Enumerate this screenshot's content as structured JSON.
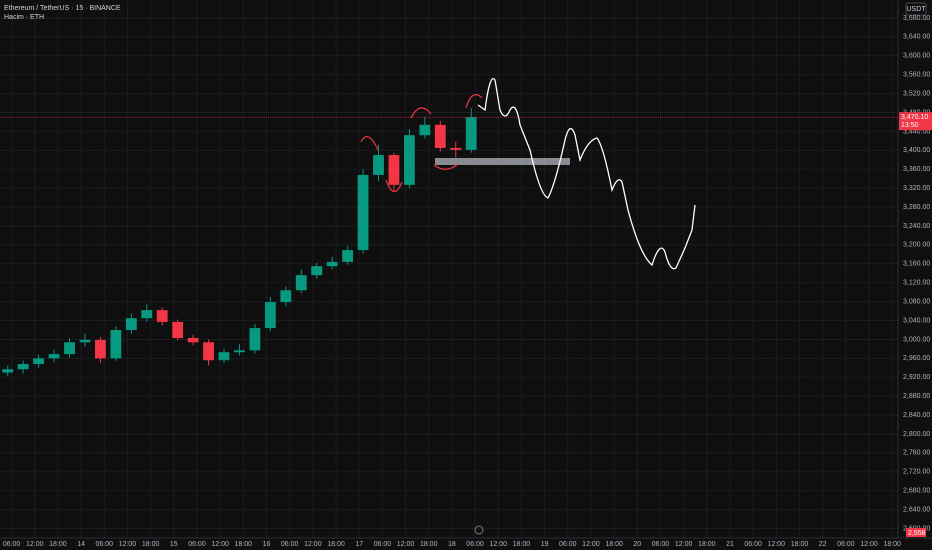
{
  "header": {
    "symbol": "Ethereum / TetherUS · 15 · BINANCE",
    "volume_legend": "Hacim · ETH",
    "currency": "USDT",
    "price_label": "3,470.10",
    "countdown": "13:50",
    "volume_label": "2,558"
  },
  "chart_data": {
    "type": "candlestick",
    "x": [
      -1,
      3,
      7,
      11,
      15,
      19,
      23,
      27,
      31,
      35,
      39,
      43,
      47,
      51,
      55,
      59,
      63,
      67,
      71,
      75,
      79,
      83,
      87,
      91,
      95,
      99,
      103,
      107,
      111,
      115,
      119
    ],
    "open": [
      2930,
      2937,
      2948,
      2960,
      2969,
      2994,
      2999,
      2960,
      3020,
      3045,
      3062,
      3037,
      3003,
      2994,
      2956,
      2973,
      2977,
      3024,
      3079,
      3104,
      3136,
      3155,
      3164,
      3189,
      3348,
      3390,
      3327,
      3432,
      3454,
      3405,
      3401
    ],
    "high": [
      2945,
      2955,
      2968,
      2978,
      3002,
      3012,
      3005,
      3028,
      3055,
      3075,
      3068,
      3042,
      3010,
      3000,
      2980,
      2990,
      3032,
      3090,
      3112,
      3148,
      3162,
      3175,
      3198,
      3360,
      3412,
      3395,
      3445,
      3470,
      3462,
      3418,
      3490
    ],
    "low": [
      2922,
      2928,
      2940,
      2952,
      2962,
      2985,
      2950,
      2955,
      3012,
      3038,
      3030,
      2998,
      2988,
      2945,
      2950,
      2966,
      2970,
      3018,
      3070,
      3098,
      3128,
      3148,
      3158,
      3182,
      3335,
      3315,
      3320,
      3425,
      3398,
      3385,
      3395
    ],
    "close": [
      2937,
      2948,
      2960,
      2969,
      2994,
      2999,
      2960,
      3020,
      3045,
      3062,
      3037,
      3003,
      2994,
      2956,
      2973,
      2977,
      3024,
      3079,
      3104,
      3136,
      3155,
      3164,
      3189,
      3348,
      3390,
      3327,
      3432,
      3454,
      3405,
      3401,
      3470
    ],
    "up_color": "#089981",
    "down_color": "#f23645",
    "last_price": 3470.1,
    "xlim": [
      -3,
      229.5
    ],
    "ylim": [
      2580,
      3718
    ],
    "yticks": [
      {
        "value": 3680,
        "label": "3,680.00"
      },
      {
        "value": 3640,
        "label": "3,640.00"
      },
      {
        "value": 3600,
        "label": "3,600.00"
      },
      {
        "value": 3560,
        "label": "3,560.00"
      },
      {
        "value": 3520,
        "label": "3,520.00"
      },
      {
        "value": 3480,
        "label": "3,480.00"
      },
      {
        "value": 3440,
        "label": "3,440.00"
      },
      {
        "value": 3400,
        "label": "3,400.00"
      },
      {
        "value": 3360,
        "label": "3,360.00"
      },
      {
        "value": 3320,
        "label": "3,320.00"
      },
      {
        "value": 3280,
        "label": "3,280.00"
      },
      {
        "value": 3240,
        "label": "3,240.00"
      },
      {
        "value": 3200,
        "label": "3,200.00"
      },
      {
        "value": 3160,
        "label": "3,160.00"
      },
      {
        "value": 3120,
        "label": "3,120.00"
      },
      {
        "value": 3080,
        "label": "3,080.00"
      },
      {
        "value": 3040,
        "label": "3,040.00"
      },
      {
        "value": 3000,
        "label": "3,000.00"
      },
      {
        "value": 2960,
        "label": "2,960.00"
      },
      {
        "value": 2920,
        "label": "2,920.00"
      },
      {
        "value": 2880,
        "label": "2,880.00"
      },
      {
        "value": 2840,
        "label": "2,840.00"
      },
      {
        "value": 2800,
        "label": "2,800.00"
      },
      {
        "value": 2760,
        "label": "2,760.00"
      },
      {
        "value": 2720,
        "label": "2,720.00"
      },
      {
        "value": 2680,
        "label": "2,680.00"
      },
      {
        "value": 2640,
        "label": "2,640.00"
      },
      {
        "value": 2600,
        "label": "2,600.00"
      }
    ],
    "xticks": [
      {
        "value": 0,
        "label": "06:00"
      },
      {
        "value": 6,
        "label": "12:00"
      },
      {
        "value": 12,
        "label": "18:00"
      },
      {
        "value": 18,
        "label": "14"
      },
      {
        "value": 24,
        "label": "06:00"
      },
      {
        "value": 30,
        "label": "12:00"
      },
      {
        "value": 36,
        "label": "18:00"
      },
      {
        "value": 42,
        "label": "15"
      },
      {
        "value": 48,
        "label": "06:00"
      },
      {
        "value": 54,
        "label": "12:00"
      },
      {
        "value": 60,
        "label": "18:00"
      },
      {
        "value": 66,
        "label": "16"
      },
      {
        "value": 72,
        "label": "06:00"
      },
      {
        "value": 78,
        "label": "12:00"
      },
      {
        "value": 84,
        "label": "18:00"
      },
      {
        "value": 90,
        "label": "17"
      },
      {
        "value": 96,
        "label": "06:00"
      },
      {
        "value": 102,
        "label": "12:00"
      },
      {
        "value": 108,
        "label": "18:00"
      },
      {
        "value": 114,
        "label": "18"
      },
      {
        "value": 120,
        "label": "06:00"
      },
      {
        "value": 126,
        "label": "12:00"
      },
      {
        "value": 132,
        "label": "18:00"
      },
      {
        "value": 138,
        "label": "19"
      },
      {
        "value": 144,
        "label": "06:00"
      },
      {
        "value": 150,
        "label": "12:00"
      },
      {
        "value": 156,
        "label": "18:00"
      },
      {
        "value": 162,
        "label": "20"
      },
      {
        "value": 168,
        "label": "06:00"
      },
      {
        "value": 174,
        "label": "12:00"
      },
      {
        "value": 180,
        "label": "18:00"
      },
      {
        "value": 186,
        "label": "21"
      },
      {
        "value": 192,
        "label": "06:00"
      },
      {
        "value": 198,
        "label": "12:00"
      },
      {
        "value": 204,
        "label": "18:00"
      },
      {
        "value": 210,
        "label": "22"
      },
      {
        "value": 216,
        "label": "06:00"
      },
      {
        "value": 222,
        "label": "12:00"
      },
      {
        "value": 228,
        "label": "18:00"
      }
    ],
    "grid": true
  }
}
